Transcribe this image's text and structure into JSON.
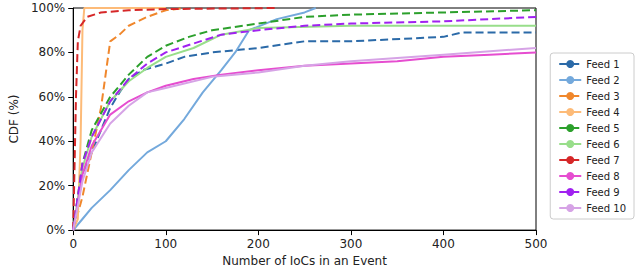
{
  "chart_data": {
    "type": "line",
    "x_label": "Number of IoCs in an Event",
    "y_label": "CDF (%)",
    "xlim": [
      0,
      500
    ],
    "xticks": [
      0,
      100,
      200,
      300,
      400,
      500
    ],
    "ylim": [
      0,
      100
    ],
    "yticks": [
      {
        "value": 0,
        "label": "0%"
      },
      {
        "value": 20,
        "label": "20%"
      },
      {
        "value": 40,
        "label": "40%"
      },
      {
        "value": 60,
        "label": "60%"
      },
      {
        "value": 80,
        "label": "80%"
      },
      {
        "value": 100,
        "label": "100%"
      }
    ],
    "grid": false,
    "legend": "right",
    "series": [
      {
        "name": "Feed 1",
        "color": "#2b6aa8",
        "line_style": "dashed",
        "x": [
          0,
          5,
          10,
          20,
          30,
          40,
          50,
          60,
          75,
          100,
          120,
          150,
          200,
          250,
          300,
          400,
          420,
          500
        ],
        "values": [
          0,
          15,
          25,
          35,
          45,
          55,
          62,
          68,
          72,
          75,
          78,
          80,
          82,
          85,
          85,
          87,
          89,
          89
        ]
      },
      {
        "name": "Feed 2",
        "color": "#74a9dc",
        "line_style": "solid",
        "x": [
          0,
          10,
          20,
          40,
          60,
          80,
          100,
          120,
          140,
          160,
          175,
          190,
          220,
          250,
          262
        ],
        "values": [
          0,
          5,
          10,
          18,
          27,
          35,
          40,
          50,
          62,
          72,
          80,
          90,
          95,
          98,
          100
        ]
      },
      {
        "name": "Feed 3",
        "color": "#f0872c",
        "line_style": "dashed",
        "x": [
          0,
          10,
          20,
          30,
          35,
          40,
          50,
          60,
          80,
          100,
          120
        ],
        "values": [
          0,
          15,
          35,
          55,
          70,
          85,
          88,
          92,
          96,
          99,
          100
        ]
      },
      {
        "name": "Feed 4",
        "color": "#fdbb78",
        "line_style": "solid",
        "x": [
          0,
          5,
          8,
          10,
          12,
          15,
          100
        ],
        "values": [
          0,
          5,
          40,
          90,
          100,
          100,
          100
        ]
      },
      {
        "name": "Feed 5",
        "color": "#2ca02c",
        "line_style": "dashed",
        "x": [
          0,
          10,
          20,
          40,
          60,
          80,
          100,
          125,
          150,
          200,
          250,
          300,
          400,
          500
        ],
        "values": [
          0,
          30,
          45,
          60,
          70,
          78,
          83,
          87,
          90,
          93,
          96,
          97,
          98,
          99
        ]
      },
      {
        "name": "Feed 6",
        "color": "#98de8a",
        "line_style": "solid",
        "x": [
          0,
          10,
          20,
          40,
          60,
          80,
          100,
          130,
          160,
          200,
          300,
          500
        ],
        "values": [
          0,
          28,
          42,
          58,
          67,
          73,
          78,
          82,
          88,
          91,
          92,
          92
        ]
      },
      {
        "name": "Feed 7",
        "color": "#d62728",
        "line_style": "dashed",
        "x": [
          0,
          3,
          5,
          8,
          15,
          30,
          60,
          100,
          220
        ],
        "values": [
          0,
          60,
          85,
          92,
          96,
          98,
          99,
          99.5,
          100
        ]
      },
      {
        "name": "Feed 8",
        "color": "#e64dd0",
        "line_style": "solid",
        "x": [
          0,
          10,
          20,
          40,
          60,
          80,
          100,
          130,
          160,
          200,
          250,
          300,
          350,
          400,
          450,
          500
        ],
        "values": [
          0,
          25,
          38,
          52,
          58,
          62,
          65,
          68,
          70,
          72,
          74,
          75,
          76,
          78,
          79,
          80
        ]
      },
      {
        "name": "Feed 9",
        "color": "#a021f0",
        "line_style": "dashed",
        "x": [
          0,
          10,
          20,
          40,
          60,
          80,
          100,
          130,
          160,
          200,
          250,
          300,
          400,
          450,
          500
        ],
        "values": [
          0,
          30,
          42,
          58,
          68,
          75,
          80,
          84,
          88,
          90,
          92,
          93,
          94,
          95,
          96
        ]
      },
      {
        "name": "Feed 10",
        "color": "#d6a3e6",
        "line_style": "solid",
        "x": [
          0,
          10,
          20,
          40,
          60,
          80,
          100,
          150,
          200,
          250,
          300,
          400,
          500
        ],
        "values": [
          0,
          22,
          35,
          48,
          56,
          62,
          64,
          69,
          71,
          74,
          76,
          79,
          82
        ]
      }
    ]
  }
}
